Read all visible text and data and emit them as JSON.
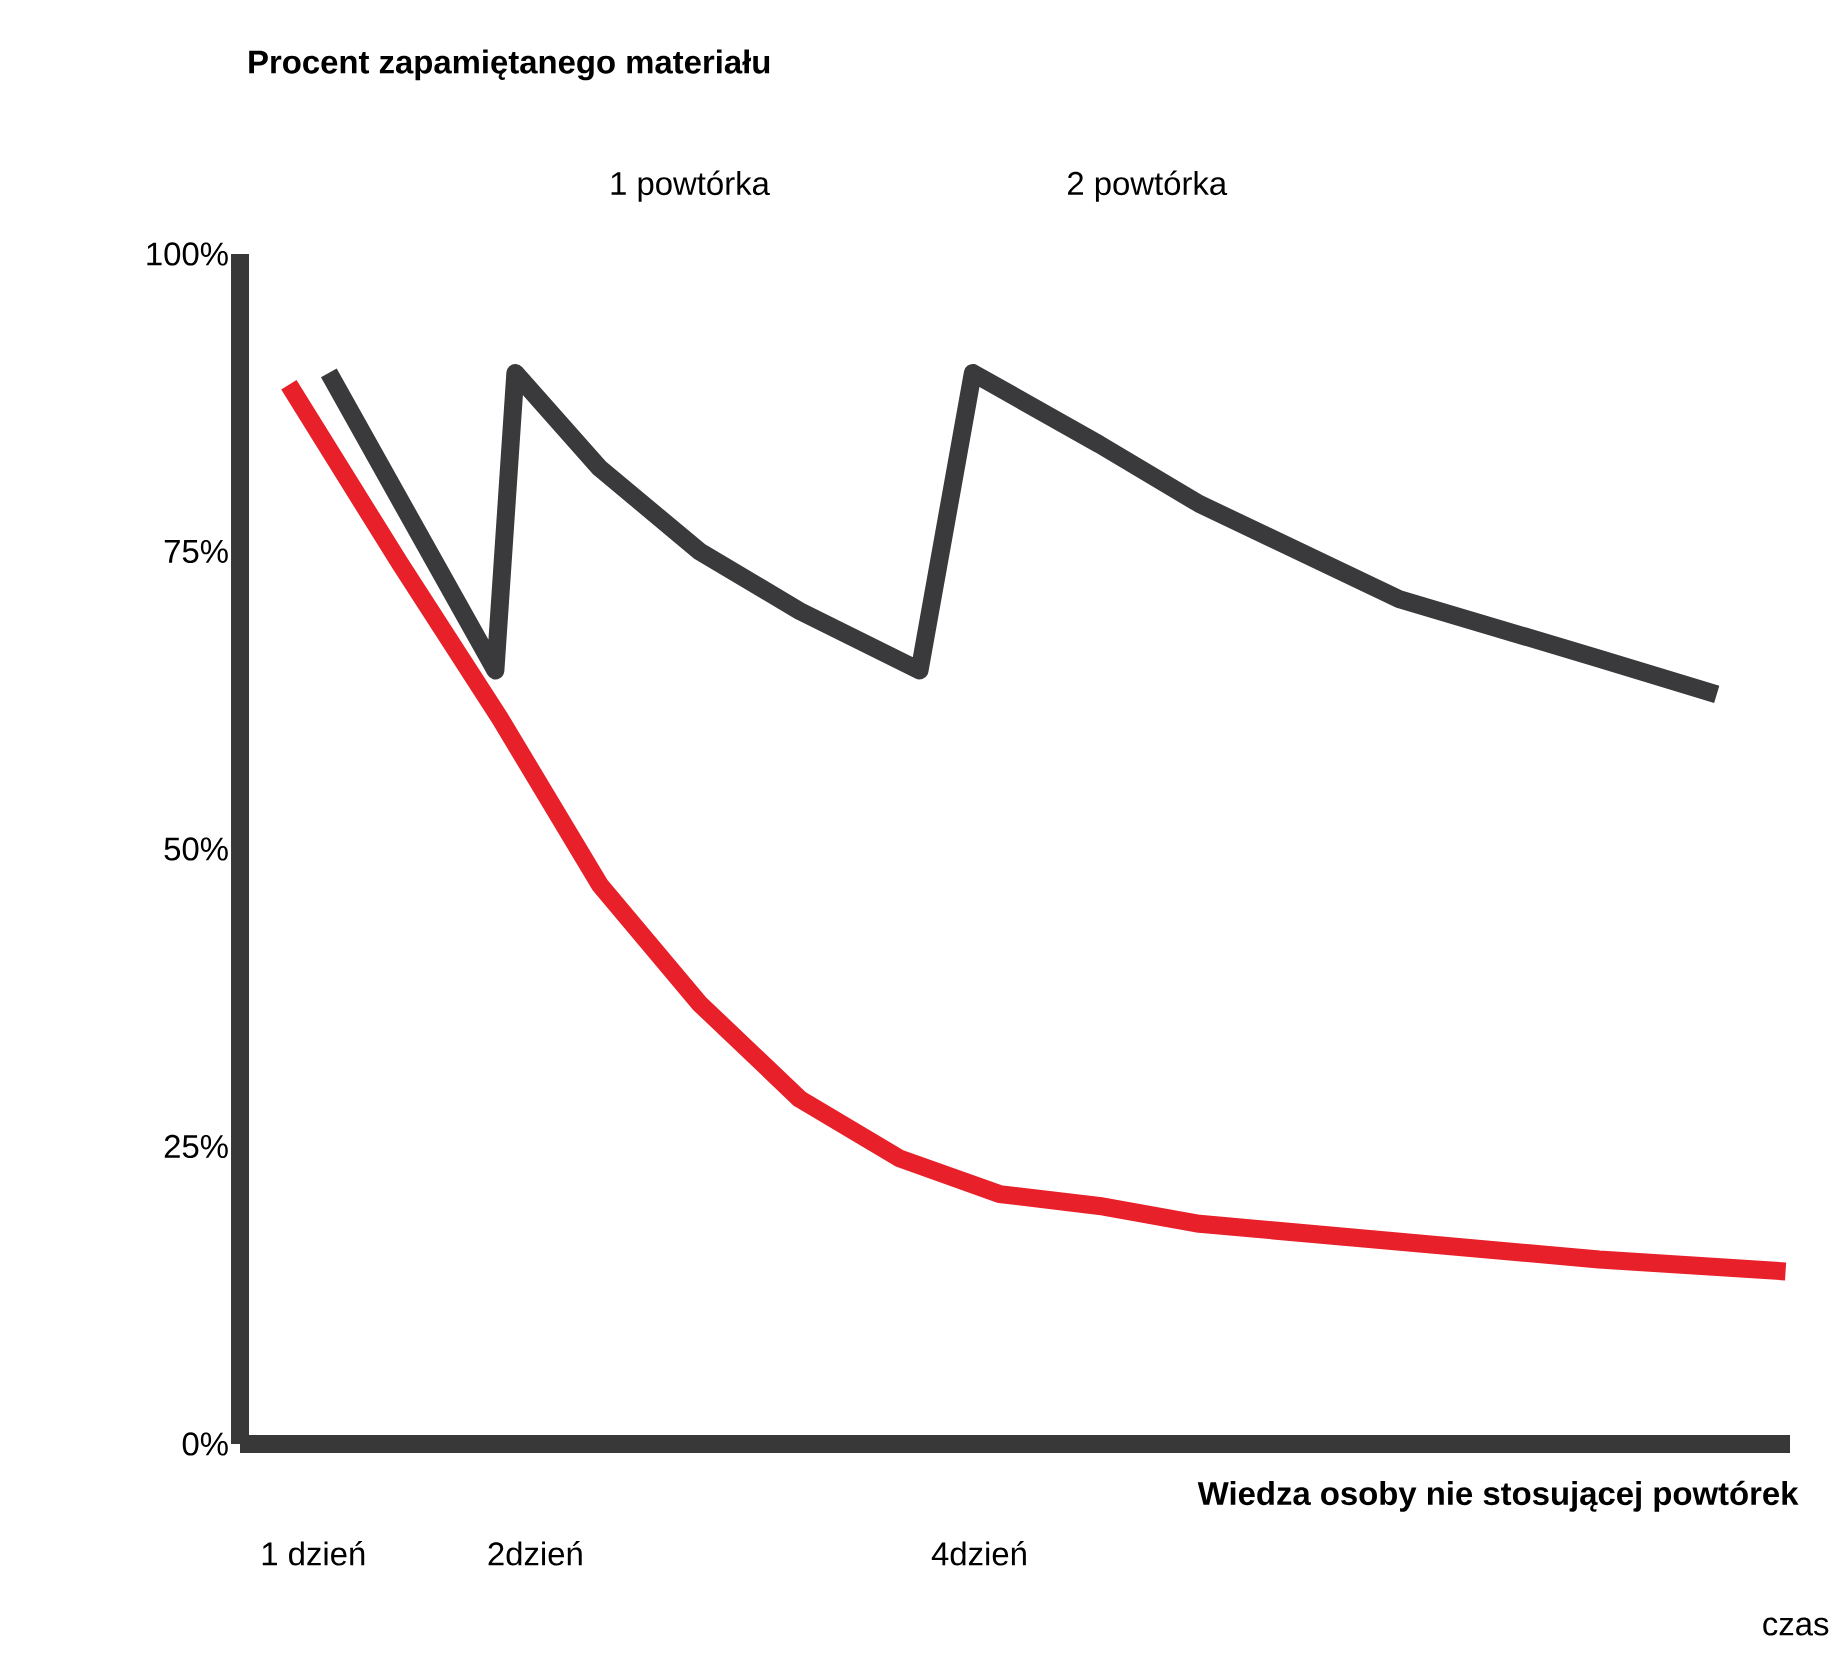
{
  "chart_data": {
    "type": "line",
    "ylabel": "Procent zapamiętanego materiału",
    "xlabel": "czas",
    "xlim": [
      0.67,
      7.65
    ],
    "ylim": [
      0,
      100
    ],
    "xticks": [
      {
        "value": 1,
        "label": "1 dzień"
      },
      {
        "value": 2,
        "label": "2dzień"
      },
      {
        "value": 4,
        "label": "4dzień"
      }
    ],
    "yticks": [
      {
        "value": 0,
        "label": "0%"
      },
      {
        "value": 25,
        "label": "25%"
      },
      {
        "value": 50,
        "label": "50%"
      },
      {
        "value": 75,
        "label": "75%"
      },
      {
        "value": 100,
        "label": "100%"
      }
    ],
    "grid": false,
    "marker": "none",
    "line_style": "solid",
    "annotations": [
      "1 powtórka",
      "2 powtórka"
    ],
    "series": [
      {
        "color": "#3a3a3c",
        "x": [
          1.07,
          1.82,
          1.91,
          2.29,
          2.74,
          3.19,
          3.73,
          3.97,
          4.54,
          4.99,
          5.89,
          6.79,
          7.32
        ],
        "values": [
          90,
          65,
          90,
          82,
          75,
          70,
          65,
          90,
          84,
          79,
          71,
          66,
          63
        ]
      },
      {
        "name": "Wiedza osoby nie stosującej powtórek",
        "color": "#e8202a",
        "x": [
          0.89,
          1.39,
          1.84,
          2.29,
          2.74,
          3.19,
          3.64,
          4.09,
          4.54,
          4.99,
          5.89,
          6.79,
          7.63
        ],
        "values": [
          89,
          74,
          61,
          47,
          37,
          29,
          24,
          21,
          20,
          18.5,
          17,
          15.5,
          14.5
        ]
      }
    ]
  }
}
